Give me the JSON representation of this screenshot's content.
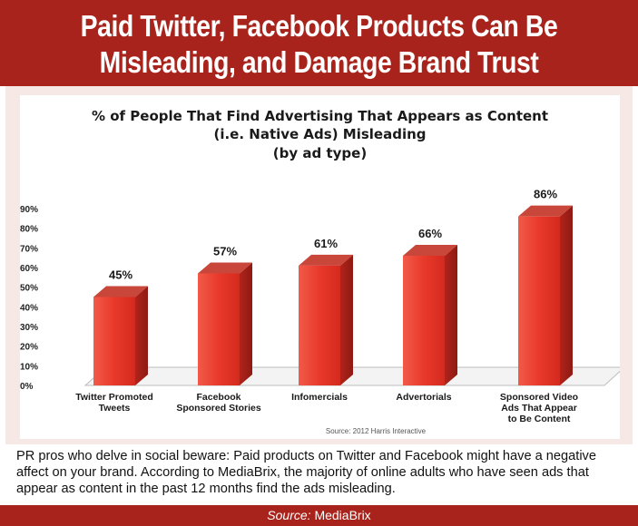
{
  "header": {
    "line1": "Paid Twitter, Facebook Products Can Be",
    "line2": "Misleading, and Damage Brand Trust"
  },
  "colors": {
    "accent": "#a8231b",
    "bar": "#e8392b",
    "panel": "#f6e9e5"
  },
  "chart_data": {
    "type": "bar",
    "title_lines": [
      "% of People That Find Advertising That Appears as Content",
      "(i.e. Native Ads) Misleading",
      "(by ad type)"
    ],
    "categories": [
      [
        "Twitter Promoted",
        "Tweets"
      ],
      [
        "Facebook",
        "Sponsored Stories"
      ],
      [
        "Infomercials"
      ],
      [
        "Advertorials"
      ],
      [
        "Sponsored Video",
        "Ads That Appear",
        "to Be Content"
      ]
    ],
    "values": [
      45,
      57,
      61,
      66,
      86
    ],
    "value_labels": [
      "45%",
      "57%",
      "61%",
      "66%",
      "86%"
    ],
    "yticks": [
      "0%",
      "10%",
      "20%",
      "30%",
      "40%",
      "50%",
      "60%",
      "70%",
      "80%",
      "90%"
    ],
    "ylim": [
      0,
      90
    ],
    "source": "Source: 2012 Harris Interactive",
    "grid": false,
    "legend": "none"
  },
  "caption": "PR pros who delve in social beware: Paid products on Twitter and Facebook might have a negative affect on your brand. According to MediaBrix, the majority of online adults who have seen ads that appear as content in the past 12 months find the ads misleading.",
  "footer": {
    "label": "Source:",
    "source": "MediaBrix"
  }
}
